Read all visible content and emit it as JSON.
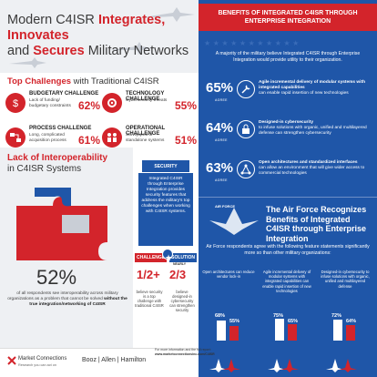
{
  "title": {
    "part1": "Modern C4ISR ",
    "integrates": "Integrates, Innovates",
    "part2": "and ",
    "secures": "Secures",
    "part3": " Military Networks"
  },
  "top_challenges": {
    "heading_bold": "Top Challenges",
    "heading_rest": " with Traditional C4ISR",
    "items": [
      {
        "title": "BUDGETARY CHALLENGE",
        "desc": "Lack of funding/ budgetary constraints",
        "pct": "62%",
        "icon": "money-icon"
      },
      {
        "title": "TECHNOLOGY CHALLENGE",
        "desc": "Cybersecurity threats",
        "pct": "55%",
        "icon": "gear-icon"
      },
      {
        "title": "PROCESS CHALLENGE",
        "desc": "Long, complicated acquisition process",
        "pct": "61%",
        "icon": "process-icon"
      },
      {
        "title": "OPERATIONAL CHALLENGE",
        "desc": "Stovepiped or standalone systems",
        "pct": "51%",
        "icon": "people-icon"
      }
    ]
  },
  "interop": {
    "heading_bold": "Lack of Interoperability",
    "heading_rest": "in C4ISR Systems",
    "value": "52%",
    "text": "of all respondents see interoperability across military organizations as a problem that cannot be solved",
    "text_bold": "without the true integration/networking of C4ISR"
  },
  "security": {
    "tab": "SECURITY FEATURES",
    "panel": "Integrated C4ISR through Enterprise Integration provides security features that address the military's top challenges when working with C4ISR systems.",
    "challenge": "CHALLENGE",
    "solution": "SOLUTION",
    "nearly": "NEARLY",
    "stat1": "1/2+",
    "stat1_desc": "believe security is a top challenge with traditional C4ISR",
    "stat2": "2/3",
    "stat2_desc": "believe designed-in cybersecurity can strengthen security"
  },
  "benefits": {
    "heading": "BENEFITS OF INTEGRATED C4ISR THROUGH ENTERPRISE INTEGRATION",
    "sub": "A majority of the military believe Integrated C4ISR through Enterprise Integration would provide utility to their organization.",
    "agree": "AGREE",
    "items": [
      {
        "pct": "65%",
        "bold": "Agile incremental delivery of modular systems with integrated capabilities",
        "rest": "can enable rapid insertion of new technologies",
        "icon": "wrench-icon"
      },
      {
        "pct": "64%",
        "bold": "Designed-in cybersecurity",
        "rest": "to infuse solutions with organic, unified and multilayered defense can strengthen cybersecurity",
        "icon": "lock-icon"
      },
      {
        "pct": "63%",
        "bold": "Open architectures and standardized interfaces",
        "rest": "can allow an environment that will give wider access to commercial technologies",
        "icon": "network-icon"
      }
    ]
  },
  "air_force": {
    "logo": "AIR FORCE",
    "title": "The Air Force Recognizes Benefits of Integrated C4ISR through Enterprise Integration",
    "sub": "Air Force respondents agree with the following feature statements significantly more so than other military organizations:",
    "columns": [
      {
        "text": "Open architectures can reduce vendor lock-in",
        "af": "68%",
        "other": "55%"
      },
      {
        "text": "Agile incremental delivery of modular systems with integrated capabilities can enable rapid insertion of new technologies",
        "af": "75%",
        "other": "65%"
      },
      {
        "text": "Designed-in cybersecurity to infuse solutions with organic, unified and multilayered defense",
        "af": "72%",
        "other": "64%"
      }
    ]
  },
  "footer": {
    "mc": "Market Connections",
    "mc_tag": "Research you can act on",
    "bah": "Booz | Allen | Hamilton",
    "more1": "For more information and the full report:",
    "more2": "www.marketconnectionsinc.com/C4ISR"
  },
  "colors": {
    "red": "#d3242b",
    "blue": "#1f56a8"
  }
}
